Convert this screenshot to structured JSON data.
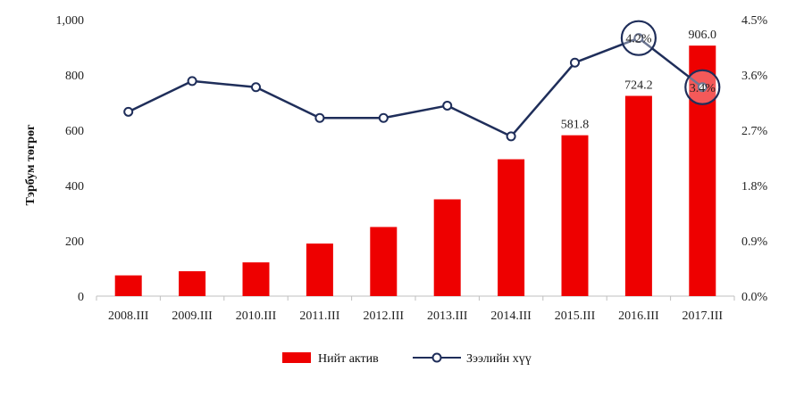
{
  "chart_data": {
    "type": "bar+line",
    "categories": [
      "2008.III",
      "2009.III",
      "2010.III",
      "2011.III",
      "2012.III",
      "2013.III",
      "2014.III",
      "2015.III",
      "2016.III",
      "2017.III"
    ],
    "series": [
      {
        "name": "Нийт актив",
        "type": "bar",
        "axis": "left",
        "color": "#ee0000",
        "values": [
          75,
          90,
          122,
          190,
          250,
          350,
          495,
          581.8,
          724.2,
          906.0
        ],
        "data_labels": [
          null,
          null,
          null,
          null,
          null,
          null,
          null,
          "581.8",
          "724.2",
          "906.0"
        ]
      },
      {
        "name": "Зээлийн хүү",
        "type": "line",
        "axis": "right",
        "color": "#1f2e5a",
        "values": [
          3.0,
          3.5,
          3.4,
          2.9,
          2.9,
          3.1,
          2.6,
          3.8,
          4.2,
          3.4
        ],
        "data_labels": [
          null,
          null,
          null,
          null,
          null,
          null,
          null,
          null,
          "4.2%",
          "3.4%"
        ],
        "circled_points": [
          8,
          9
        ]
      }
    ],
    "ylabel": "Тэрбум төгрөг",
    "y_left": {
      "lim": [
        0,
        1000
      ],
      "ticks": [
        0,
        200,
        400,
        600,
        800,
        1000
      ],
      "tick_labels": [
        "0",
        "200",
        "400",
        "600",
        "800",
        "1,000"
      ]
    },
    "y_right": {
      "lim": [
        0,
        4.5
      ],
      "ticks": [
        0,
        0.9,
        1.8,
        2.7,
        3.6,
        4.5
      ],
      "tick_labels": [
        "0.0%",
        "0.9%",
        "1.8%",
        "2.7%",
        "3.6%",
        "4.5%"
      ]
    },
    "grid": false,
    "legend": "bottom-center"
  }
}
